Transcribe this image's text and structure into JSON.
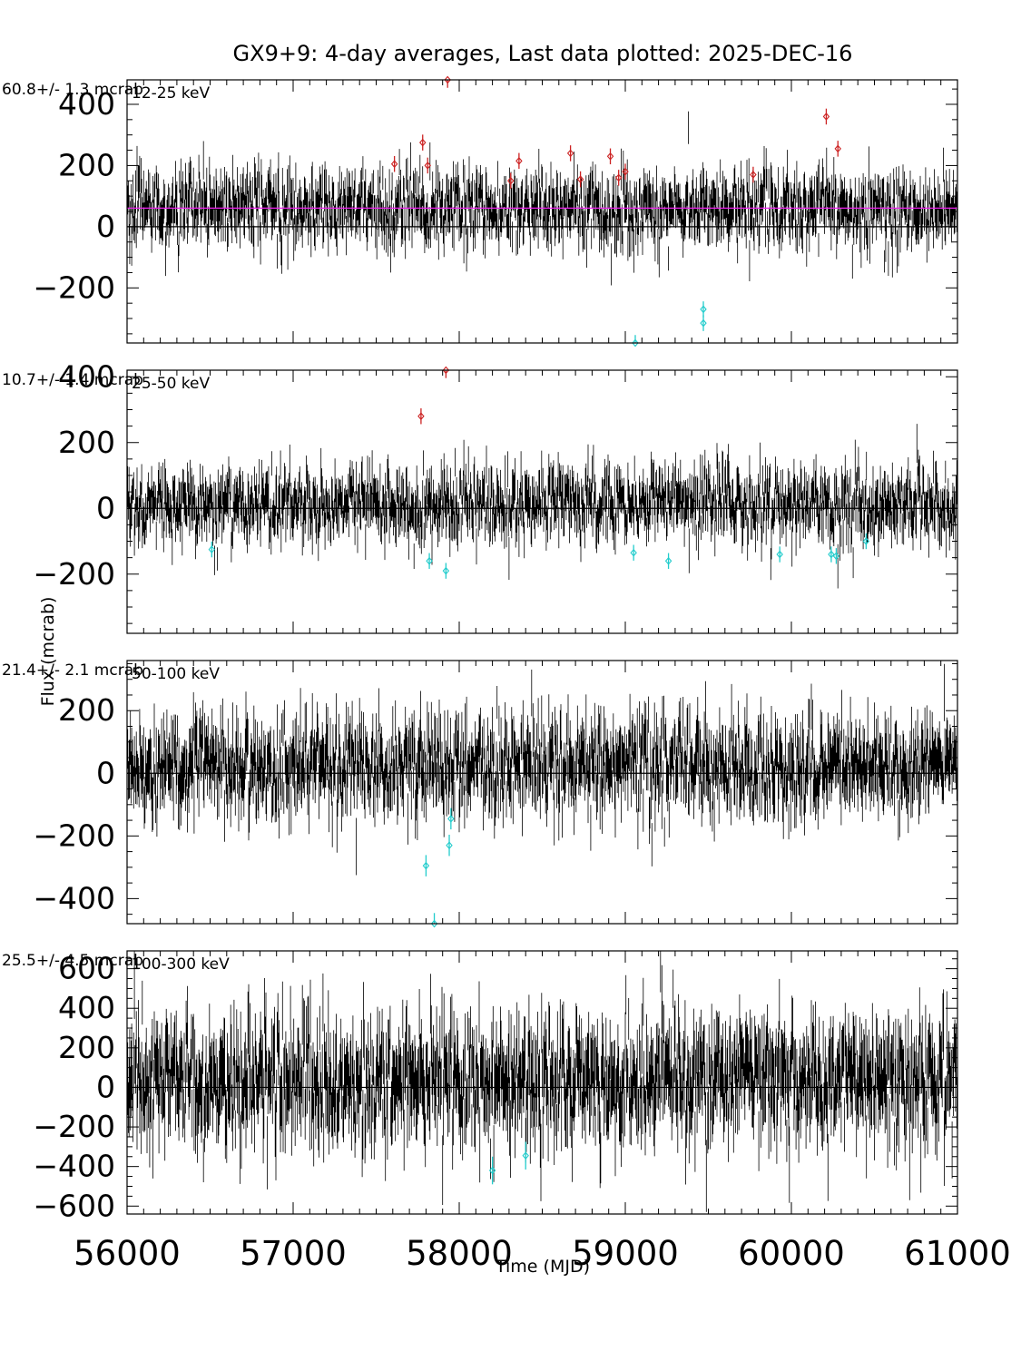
{
  "chart_data": {
    "type": "scatter",
    "title": "GX9+9:  4-day averages,  Last data plotted: 2025-DEC-16",
    "xlabel": "Time (MJD)",
    "ylabel": "Flux (mcrab)",
    "xlim": [
      56000,
      61000
    ],
    "x_ticks": [
      56000,
      57000,
      58000,
      59000,
      60000,
      61000
    ],
    "x_tick_labels": [
      "56000",
      "57000",
      "58000",
      "59000",
      "60000",
      "61000"
    ],
    "series_colors": {
      "data": "#000000",
      "high_outlier": "#cc2222",
      "low_outlier": "#22cccc",
      "mean_line": "#ee22ee"
    },
    "panels": [
      {
        "band": "12-25 keV",
        "mean_label": "60.8+/-      1.3 mcrab",
        "mean": 60.8,
        "ylim": [
          -380,
          480
        ],
        "y_ticks": [
          -200,
          0,
          200,
          400
        ],
        "y_tick_labels": [
          "−200",
          "0",
          "200",
          "400"
        ],
        "show_mean_line": true,
        "noise_sigma": 65,
        "high_outliers": [
          [
            57610,
            205
          ],
          [
            57780,
            275
          ],
          [
            57810,
            200
          ],
          [
            58310,
            150
          ],
          [
            58360,
            215
          ],
          [
            58670,
            240
          ],
          [
            58730,
            155
          ],
          [
            58910,
            230
          ],
          [
            58960,
            160
          ],
          [
            59000,
            180
          ],
          [
            59770,
            170
          ],
          [
            60210,
            360
          ],
          [
            60280,
            255
          ],
          [
            57930,
            480
          ]
        ],
        "low_outliers": [
          [
            59060,
            -380
          ],
          [
            59470,
            -270
          ],
          [
            59470,
            -315
          ]
        ]
      },
      {
        "band": "25-50 keV",
        "mean_label": "10.7+/-      1.4 mcrab",
        "mean": 10.7,
        "ylim": [
          -380,
          420
        ],
        "y_ticks": [
          -200,
          0,
          200,
          400
        ],
        "y_tick_labels": [
          "−200",
          "0",
          "200",
          "400"
        ],
        "show_mean_line": false,
        "noise_sigma": 60,
        "high_outliers": [
          [
            57770,
            280
          ],
          [
            57920,
            420
          ]
        ],
        "low_outliers": [
          [
            56510,
            -125
          ],
          [
            57820,
            -160
          ],
          [
            57920,
            -190
          ],
          [
            59050,
            -135
          ],
          [
            59260,
            -160
          ],
          [
            59930,
            -140
          ],
          [
            60240,
            -140
          ],
          [
            60270,
            -145
          ],
          [
            60450,
            -100
          ]
        ]
      },
      {
        "band": "50-100 keV",
        "mean_label": "21.4+/-      2.1 mcrab",
        "mean": 21.4,
        "ylim": [
          -480,
          360
        ],
        "y_ticks": [
          -400,
          -200,
          0,
          200
        ],
        "y_tick_labels": [
          "−400",
          "−200",
          "0",
          "200"
        ],
        "show_mean_line": false,
        "noise_sigma": 85,
        "high_outliers": [],
        "low_outliers": [
          [
            57800,
            -295
          ],
          [
            57940,
            -230
          ],
          [
            57950,
            -145
          ],
          [
            57850,
            -480
          ]
        ]
      },
      {
        "band": "100-300 keV",
        "mean_label": "25.5+/-      4.5 mcrab",
        "mean": 25.5,
        "ylim": [
          -640,
          690
        ],
        "y_ticks": [
          -600,
          -400,
          -200,
          0,
          200,
          400,
          600
        ],
        "y_tick_labels": [
          "−600",
          "−400",
          "−200",
          "0",
          "200",
          "400",
          "600"
        ],
        "show_mean_line": false,
        "noise_sigma": 175,
        "high_outliers": [],
        "low_outliers": [
          [
            58200,
            -420
          ],
          [
            58400,
            -345
          ]
        ]
      }
    ]
  }
}
